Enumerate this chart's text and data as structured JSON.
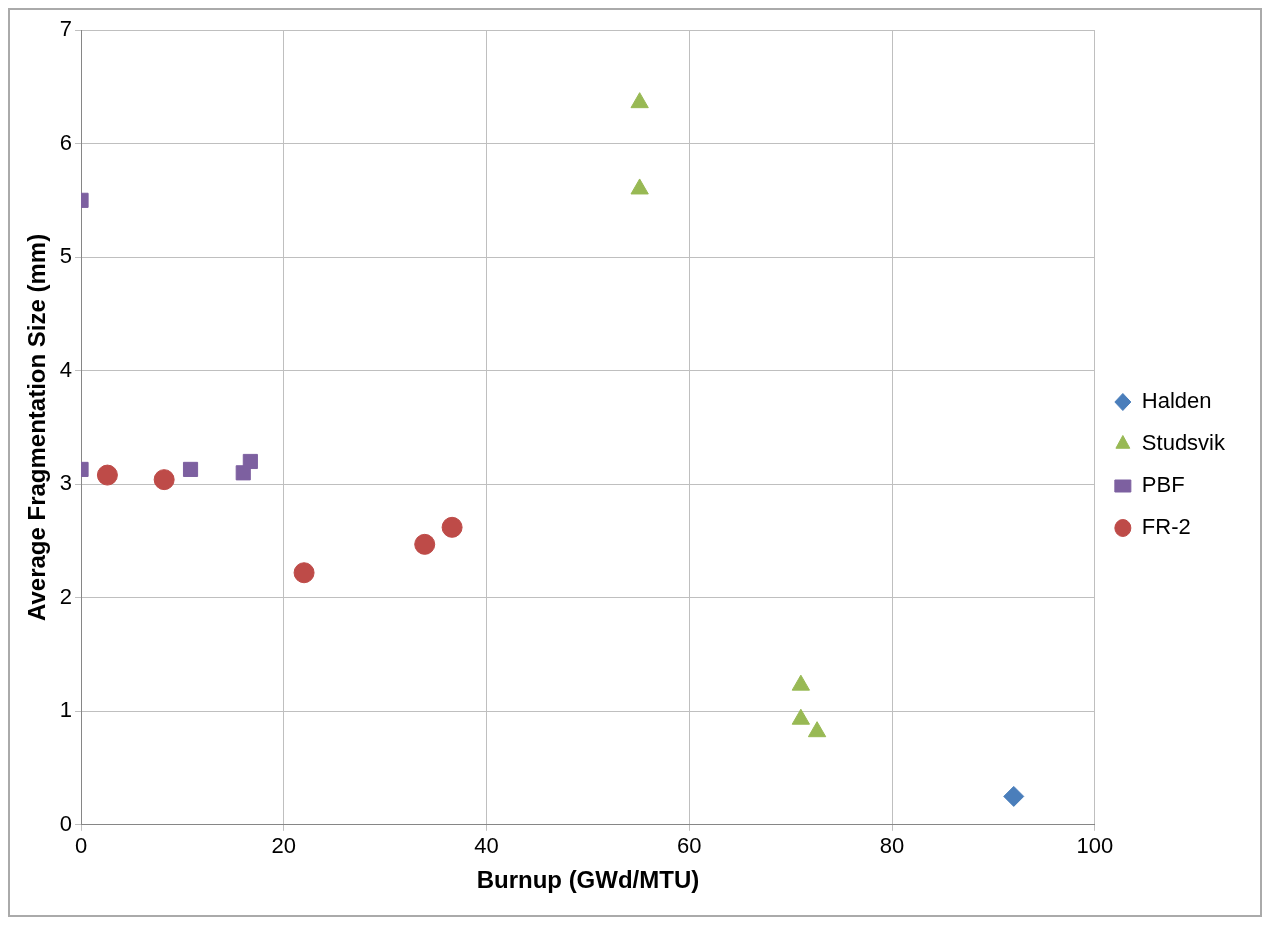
{
  "chart_data": {
    "type": "scatter",
    "xlabel": "Burnup (GWd/MTU)",
    "ylabel": "Average Fragmentation Size (mm)",
    "xlim": [
      0,
      100
    ],
    "xticks": [
      0,
      20,
      40,
      60,
      80,
      100
    ],
    "ylim": [
      0,
      7
    ],
    "yticks": [
      0,
      1,
      2,
      3,
      4,
      5,
      6,
      7
    ],
    "grid": true,
    "legend": "right",
    "series": [
      {
        "name": "Halden",
        "color": "#4a7ebb",
        "marker": "diamond",
        "x": [
          92
        ],
        "values": [
          0.25
        ]
      },
      {
        "name": "Studsvik",
        "color": "#98b954",
        "marker": "triangle",
        "x": [
          55.1,
          55.1,
          71,
          71,
          72.6
        ],
        "values": [
          6.36,
          5.6,
          1.23,
          0.93,
          0.82
        ]
      },
      {
        "name": "PBF",
        "color": "#7d60a0",
        "marker": "square",
        "x": [
          0,
          0,
          10.8,
          16,
          16.7
        ],
        "values": [
          5.5,
          3.13,
          3.13,
          3.1,
          3.2
        ]
      },
      {
        "name": "FR-2",
        "color": "#be4b48",
        "marker": "circle",
        "x": [
          2.6,
          8.2,
          22,
          33.9,
          36.6
        ],
        "values": [
          3.08,
          3.04,
          2.22,
          2.47,
          2.62
        ]
      }
    ]
  }
}
